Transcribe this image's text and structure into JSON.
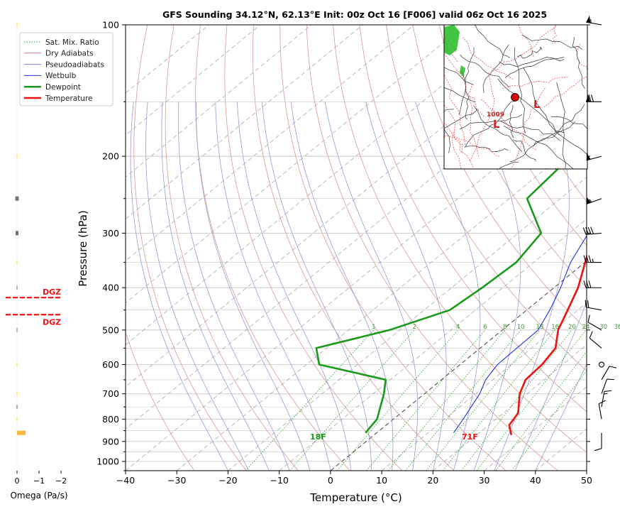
{
  "chart_data": {
    "type": "line",
    "title": "GFS Sounding 34.12°N, 62.13°E Init: 00z Oct 16 [F006] valid 06z Oct 16 2025",
    "xlabel": "Temperature (°C)",
    "ylabel": "Pressure (hPa)",
    "xlim": [
      -40,
      50
    ],
    "ylim": [
      1050,
      100
    ],
    "y_scale": "log",
    "grid": true,
    "x_ticks": [
      "−40",
      "−30",
      "−20",
      "−10",
      "0",
      "10",
      "20",
      "30",
      "40",
      "50"
    ],
    "x_tick_values": [
      -40,
      -30,
      -20,
      -10,
      0,
      10,
      20,
      30,
      40,
      50
    ],
    "y_ticks": [
      "100",
      "200",
      "300",
      "400",
      "500",
      "600",
      "700",
      "800",
      "900",
      "1000"
    ],
    "y_tick_values": [
      100,
      200,
      300,
      400,
      500,
      600,
      700,
      800,
      900,
      1000
    ],
    "legend": {
      "placement": "top-left",
      "entries": [
        {
          "label": "Sat. Mix. Ratio",
          "color": "#2ca02c",
          "style": "dotted"
        },
        {
          "label": "Dry Adiabats",
          "color": "#d08080",
          "style": "solid"
        },
        {
          "label": "Pseudoadiabats",
          "color": "#8080d0",
          "style": "solid"
        },
        {
          "label": "Wetbulb",
          "color": "#2233dd",
          "style": "solid"
        },
        {
          "label": "Dewpoint",
          "color": "#1a9a1a",
          "style": "thick"
        },
        {
          "label": "Temperature",
          "color": "#ee1111",
          "style": "thick"
        }
      ]
    },
    "mixing_ratio_labels": [
      "1",
      "2",
      "4",
      "6",
      "8",
      "10",
      "13",
      "16",
      "20",
      "24",
      "30",
      "36"
    ],
    "mixing_ratio_values": [
      1,
      2,
      4,
      6,
      8,
      10,
      13,
      16,
      20,
      24,
      30,
      36
    ],
    "series": [
      {
        "name": "Temperature",
        "color": "#ee1111",
        "points": [
          [
            100,
            -9.5
          ],
          [
            150,
            -12.4
          ],
          [
            200,
            -7.7
          ],
          [
            250,
            -6.9
          ],
          [
            300,
            -5.3
          ],
          [
            400,
            4.7
          ],
          [
            450,
            8.0
          ],
          [
            500,
            10.9
          ],
          [
            550,
            14.7
          ],
          [
            600,
            16.0
          ],
          [
            650,
            16.4
          ],
          [
            700,
            18.6
          ],
          [
            775,
            22.9
          ],
          [
            825,
            24.0
          ],
          [
            870,
            26.8
          ]
        ]
      },
      {
        "name": "Wetbulb",
        "color": "#2233dd",
        "points": [
          [
            150,
            -12.4
          ],
          [
            200,
            -8.2
          ],
          [
            250,
            -7.3
          ],
          [
            300,
            -6.3
          ],
          [
            350,
            -2.8
          ],
          [
            400,
            1.3
          ],
          [
            450,
            4.5
          ],
          [
            500,
            7.0
          ],
          [
            600,
            7.3
          ],
          [
            650,
            8.6
          ],
          [
            700,
            10.8
          ],
          [
            800,
            13.6
          ],
          [
            860,
            15.0
          ]
        ]
      },
      {
        "name": "Dewpoint",
        "color": "#1a9a1a",
        "points": [
          [
            100,
            -19.0
          ],
          [
            200,
            -28.0
          ],
          [
            250,
            -26.5
          ],
          [
            300,
            -15.5
          ],
          [
            350,
            -13.4
          ],
          [
            400,
            -14.0
          ],
          [
            450,
            -15.0
          ],
          [
            500,
            -22.0
          ],
          [
            550,
            -32.0
          ],
          [
            600,
            -27.5
          ],
          [
            650,
            -10.9
          ],
          [
            700,
            -7.9
          ],
          [
            800,
            -3.2
          ],
          [
            860,
            -2.2
          ]
        ]
      }
    ],
    "surface_labels": {
      "temperature": "71F",
      "dewpoint": "18F"
    },
    "dgz_label": "DGZ",
    "dgz_pressures": [
      394,
      420
    ],
    "omega": {
      "xlabel": "Omega (Pa/s)",
      "x_ticks": [
        "0",
        "−1",
        "−2"
      ],
      "values": [
        {
          "p": 100,
          "v": 0.02
        },
        {
          "p": 200,
          "v": 0.03
        },
        {
          "p": 250,
          "v": 0.12
        },
        {
          "p": 300,
          "v": 0.1
        },
        {
          "p": 350,
          "v": 0.02
        },
        {
          "p": 400,
          "v": 0.04
        },
        {
          "p": 500,
          "v": 0.05
        },
        {
          "p": 600,
          "v": 0.03
        },
        {
          "p": 700,
          "v": 0.03
        },
        {
          "p": 750,
          "v": 0.06
        },
        {
          "p": 800,
          "v": 0.02
        },
        {
          "p": 860,
          "v": -0.3
        }
      ]
    },
    "wind_barbs": [
      {
        "p": 100,
        "speed_kt": 55,
        "dir_deg": 280
      },
      {
        "p": 150,
        "speed_kt": 70,
        "dir_deg": 270
      },
      {
        "p": 200,
        "speed_kt": 50,
        "dir_deg": 255
      },
      {
        "p": 250,
        "speed_kt": 55,
        "dir_deg": 250
      },
      {
        "p": 300,
        "speed_kt": 40,
        "dir_deg": 265
      },
      {
        "p": 350,
        "speed_kt": 35,
        "dir_deg": 270
      },
      {
        "p": 400,
        "speed_kt": 30,
        "dir_deg": 270
      },
      {
        "p": 450,
        "speed_kt": 20,
        "dir_deg": 280
      },
      {
        "p": 500,
        "speed_kt": 10,
        "dir_deg": 300
      },
      {
        "p": 550,
        "speed_kt": 10,
        "dir_deg": 310
      },
      {
        "p": 600,
        "speed_kt": 0,
        "dir_deg": 0
      },
      {
        "p": 650,
        "speed_kt": 10,
        "dir_deg": 30
      },
      {
        "p": 700,
        "speed_kt": 10,
        "dir_deg": 20
      },
      {
        "p": 750,
        "speed_kt": 15,
        "dir_deg": 10
      },
      {
        "p": 800,
        "speed_kt": 10,
        "dir_deg": 350
      },
      {
        "p": 860,
        "speed_kt": 10,
        "dir_deg": 180
      }
    ],
    "inset_map": {
      "label_low": "L",
      "label_pressure": "1009"
    }
  }
}
